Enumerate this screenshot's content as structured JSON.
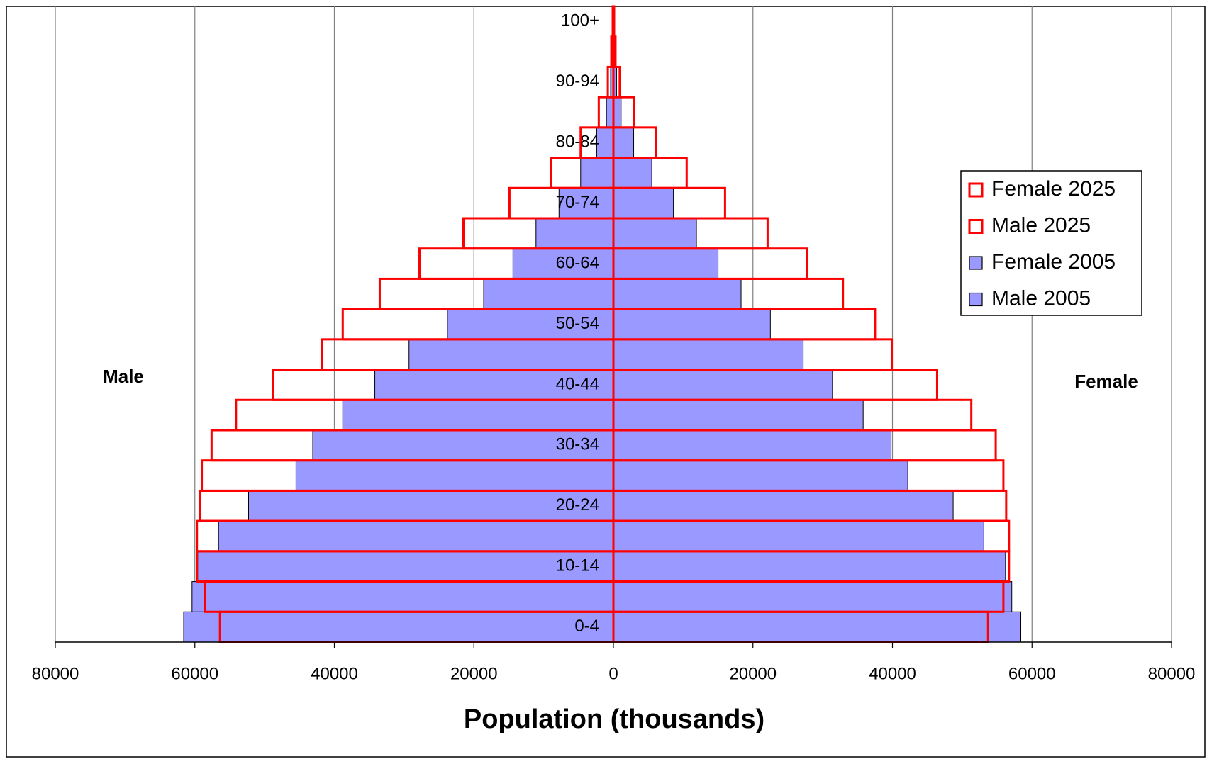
{
  "chart_data": {
    "type": "pyramid",
    "x_label": "Population (thousands)",
    "left_label": "Male",
    "right_label": "Female",
    "categories": [
      "0-4",
      null,
      "10-14",
      null,
      "20-24",
      null,
      "30-34",
      null,
      "40-44",
      null,
      "50-54",
      null,
      "60-64",
      null,
      "70-74",
      null,
      "80-84",
      null,
      "90-94",
      null,
      "100+"
    ],
    "series": [
      {
        "name": "Female 2025",
        "color": "#ff0000",
        "fill": "none",
        "values": [
          53700,
          55900,
          56700,
          56700,
          56300,
          55900,
          54800,
          51300,
          46400,
          39900,
          37500,
          32900,
          27800,
          22100,
          16000,
          10500,
          6100,
          2900,
          900,
          300,
          100
        ]
      },
      {
        "name": "Male 2025",
        "color": "#ff0000",
        "fill": "none",
        "values": [
          -56400,
          -58500,
          -59700,
          -59700,
          -59300,
          -59000,
          -57600,
          -54100,
          -48800,
          -41800,
          -38800,
          -33500,
          -27800,
          -21500,
          -14900,
          -8900,
          -4700,
          -2100,
          -800,
          -300,
          -100
        ]
      },
      {
        "name": "Female 2005",
        "color": "#000000",
        "fill": "#9999ff",
        "values": [
          58400,
          57100,
          56200,
          53100,
          48700,
          42200,
          39800,
          35800,
          31400,
          27200,
          22500,
          18300,
          15000,
          11900,
          8600,
          5500,
          2900,
          1100,
          450,
          150,
          60
        ]
      },
      {
        "name": "Male 2005",
        "color": "#000000",
        "fill": "#9999ff",
        "values": [
          -61600,
          -60400,
          -59600,
          -56600,
          -52300,
          -45500,
          -43100,
          -38800,
          -34200,
          -29300,
          -23800,
          -18600,
          -14400,
          -11100,
          -7800,
          -4700,
          -2400,
          -1000,
          -400,
          -100,
          -50
        ]
      }
    ],
    "xlim": [
      -80000,
      80000
    ],
    "xticks": [
      {
        "value": -80000,
        "label": "80000"
      },
      {
        "value": -60000,
        "label": "60000"
      },
      {
        "value": -40000,
        "label": "40000"
      },
      {
        "value": -20000,
        "label": "20000"
      },
      0,
      20000,
      40000,
      60000,
      80000
    ],
    "grid": true,
    "legend": "right"
  }
}
